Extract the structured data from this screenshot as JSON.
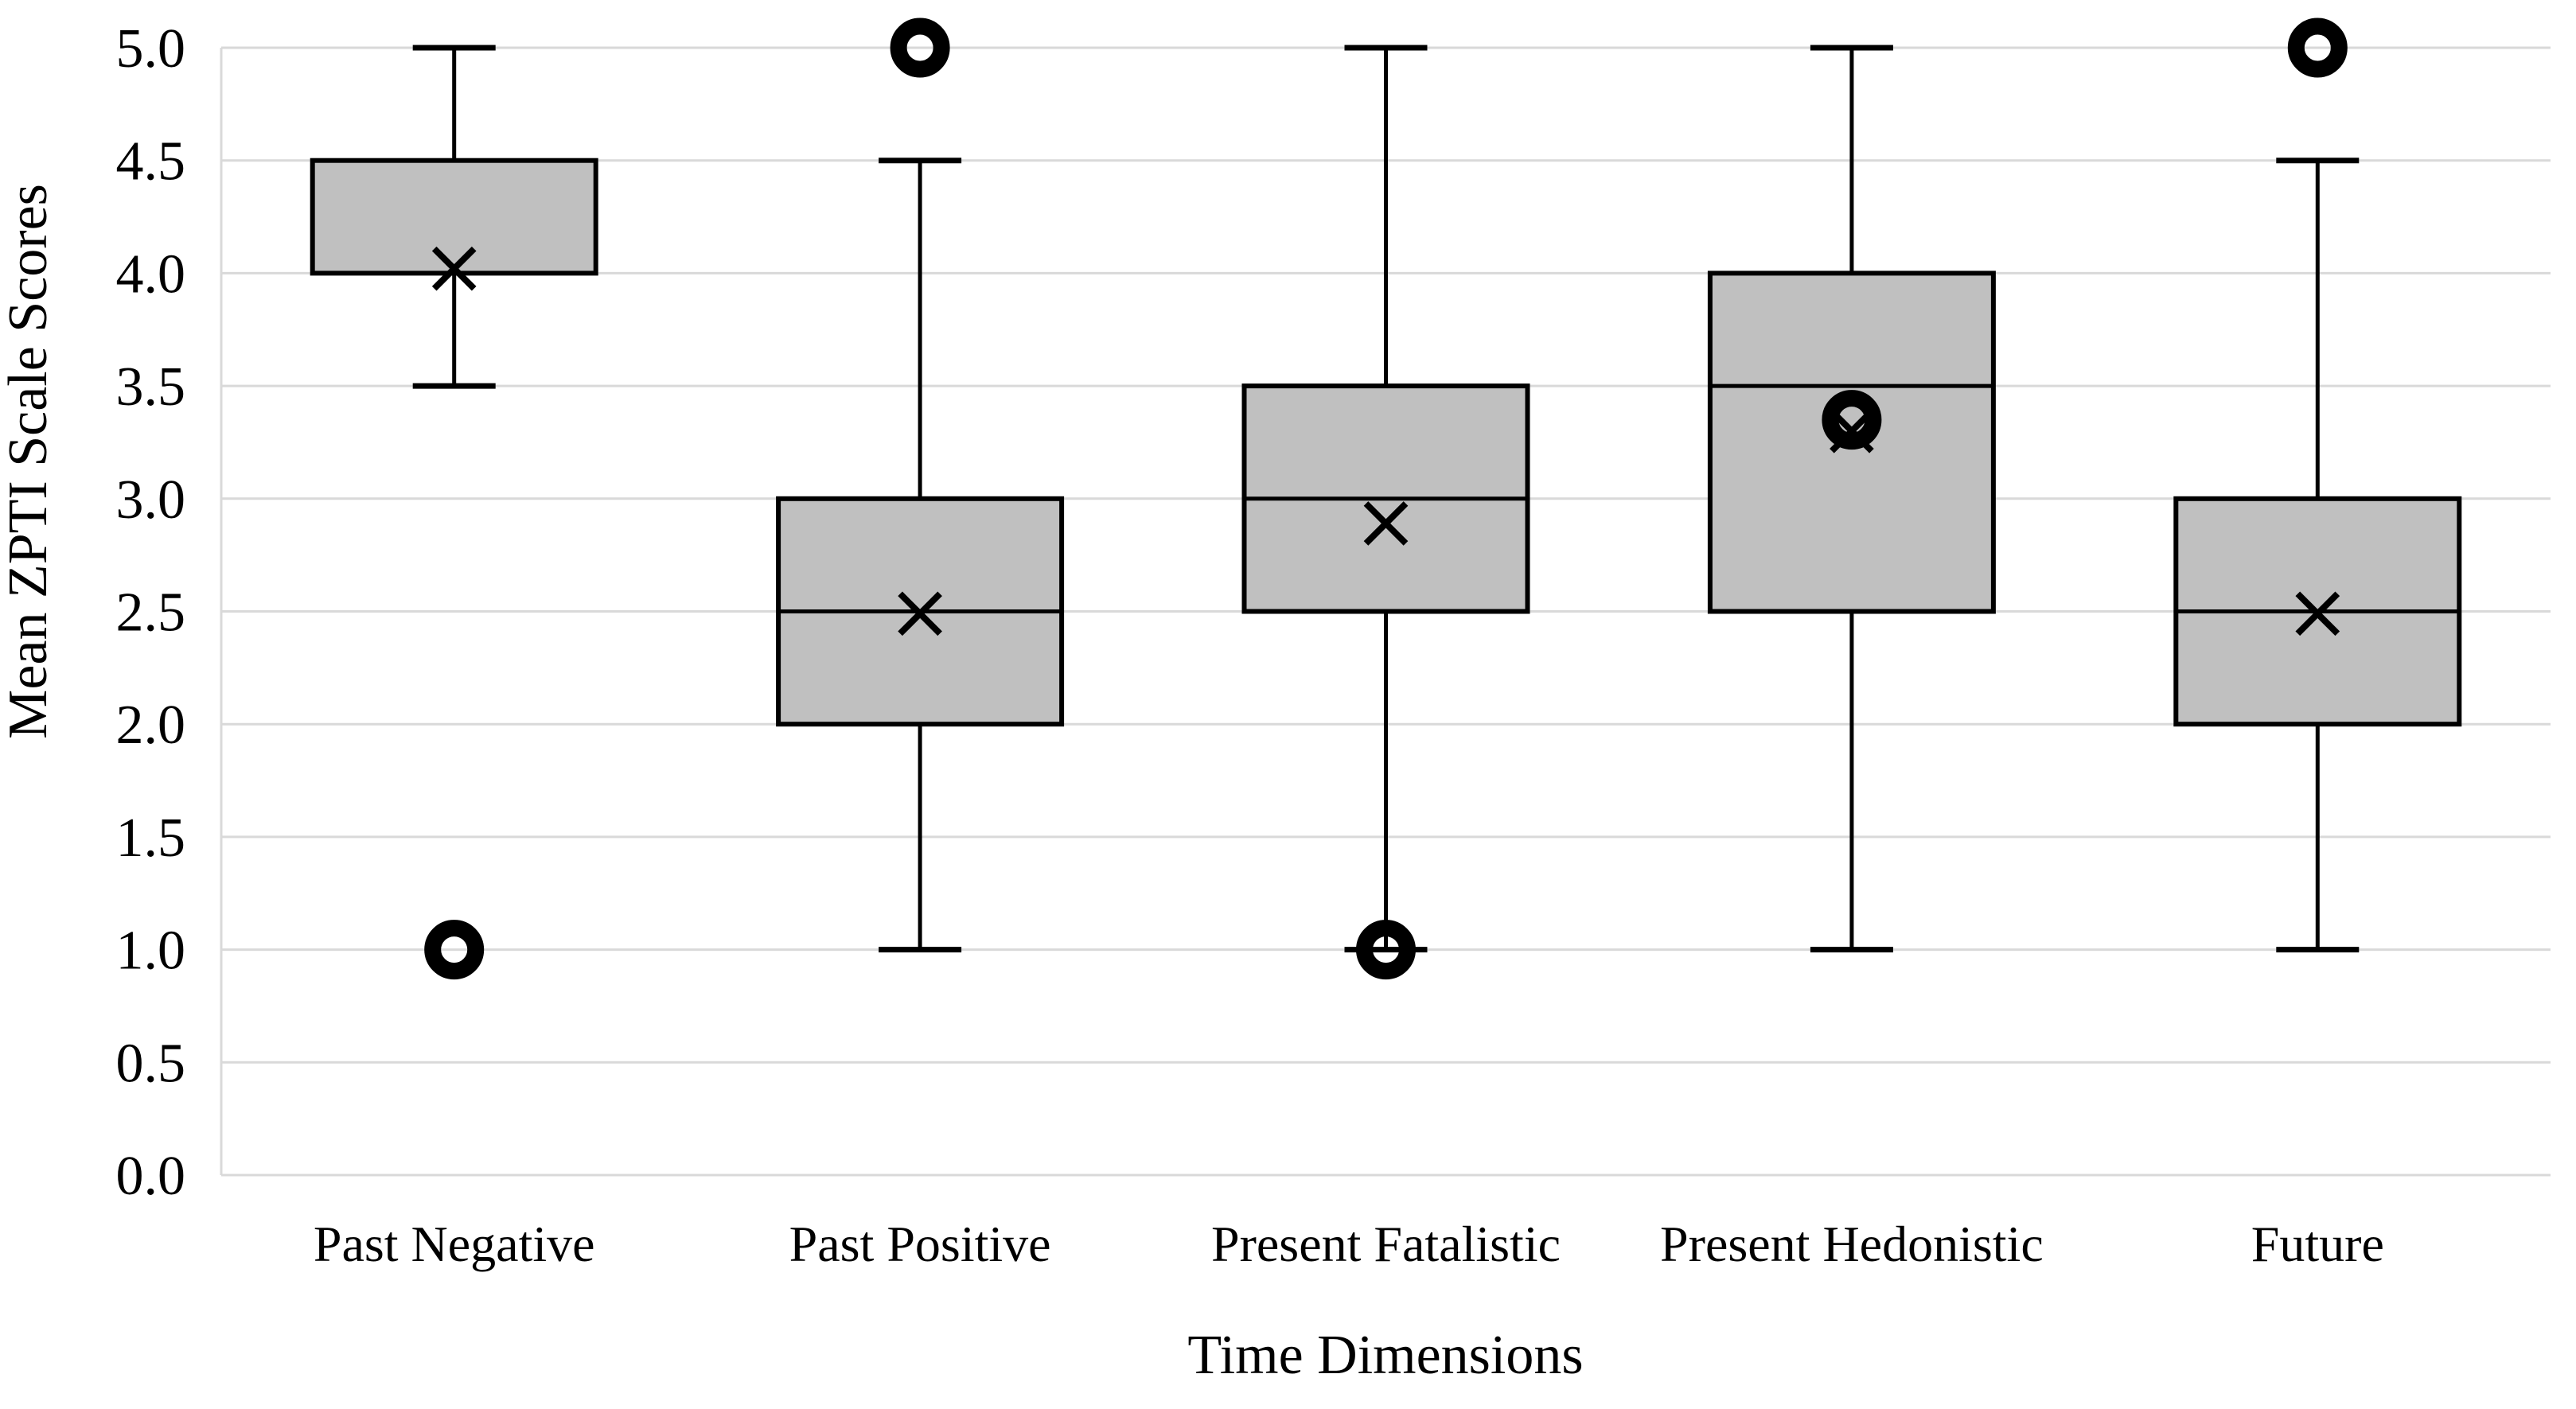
{
  "chart_data": {
    "type": "box",
    "title": "",
    "xlabel": "Time Dimensions",
    "ylabel": "Mean ZPTI Scale Scores",
    "ylim": [
      0.0,
      5.0
    ],
    "ytick_step": 0.5,
    "y_tick_labels": [
      "0.0",
      "0.5",
      "1.0",
      "1.5",
      "2.0",
      "2.5",
      "3.0",
      "3.5",
      "4.0",
      "4.5",
      "5.0"
    ],
    "categories": [
      "Past Negative",
      "Past Positive",
      "Present Fatalistic",
      "Present Hedonistic",
      "Future"
    ],
    "series": [
      {
        "name": "Past Negative",
        "whisker_low": 3.5,
        "q1": 4.0,
        "median": 4.0,
        "q3": 4.5,
        "whisker_high": 5.0,
        "mean": 4.02,
        "outliers": [
          1.0
        ]
      },
      {
        "name": "Past Positive",
        "whisker_low": 1.0,
        "q1": 2.0,
        "median": 2.5,
        "q3": 3.0,
        "whisker_high": 4.5,
        "mean": 2.49,
        "outliers": [
          5.0
        ]
      },
      {
        "name": "Present Fatalistic",
        "whisker_low": 1.0,
        "q1": 2.5,
        "median": 3.0,
        "q3": 3.5,
        "whisker_high": 5.0,
        "mean": 2.89,
        "outliers": [
          1.0
        ]
      },
      {
        "name": "Present Hedonistic",
        "whisker_low": 1.0,
        "q1": 2.5,
        "median": 3.5,
        "q3": 4.0,
        "whisker_high": 5.0,
        "mean": 3.3,
        "outliers": [
          3.35
        ]
      },
      {
        "name": "Future",
        "whisker_low": 1.0,
        "q1": 2.0,
        "median": 2.5,
        "q3": 3.0,
        "whisker_high": 4.5,
        "mean": 2.49,
        "outliers": [
          5.0
        ]
      }
    ],
    "legend": "none",
    "grid": "horizontal",
    "colors": {
      "box_fill": "#c0c0c0",
      "box_stroke": "#000000",
      "whisker": "#000000",
      "outlier": "#000000",
      "mean_marker": "#000000",
      "gridline": "#d9d9d9",
      "axis_line": "#d9d9d9",
      "text": "#000000",
      "background": "#ffffff"
    }
  }
}
